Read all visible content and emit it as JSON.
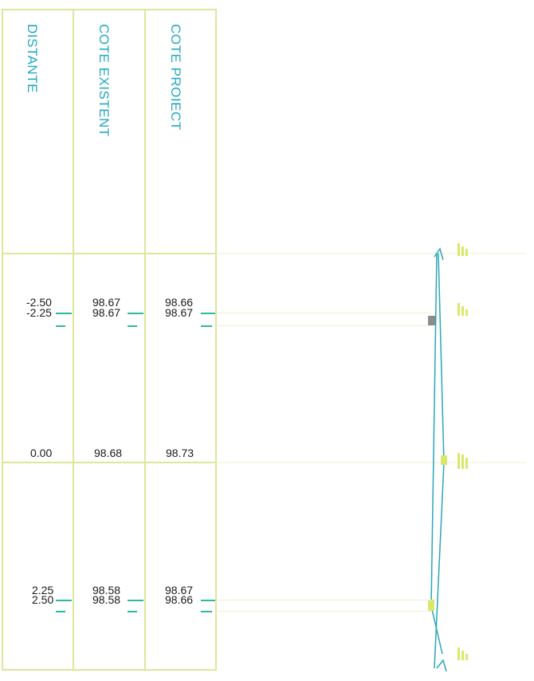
{
  "colors": {
    "grid": "#dfe59a",
    "header_text": "#23a8c4",
    "value_text": "#1a1a1a",
    "tick": "#2fb8a0",
    "leader": "#eef1d2",
    "profile_line": "#2aa6b8",
    "marker_yellow": "#d9e86a",
    "marker_gray": "#8c8c8c"
  },
  "table": {
    "headers": {
      "distante": "DISTANTE",
      "cote_existent": "COTE EXISTENT",
      "cote_proiect": "COTE PROIECT"
    },
    "rows": [
      {
        "distante": "-2.50",
        "cote_existent": "98.67",
        "cote_proiect": "98.66"
      },
      {
        "distante": "-2.25",
        "cote_existent": "98.67",
        "cote_proiect": "98.67"
      },
      {
        "distante": "0.00",
        "cote_existent": "98.68",
        "cote_proiect": "98.73"
      },
      {
        "distante": "2.25",
        "cote_existent": "98.58",
        "cote_proiect": "98.67"
      },
      {
        "distante": "2.50",
        "cote_existent": "98.58",
        "cote_proiect": "98.66"
      }
    ]
  }
}
